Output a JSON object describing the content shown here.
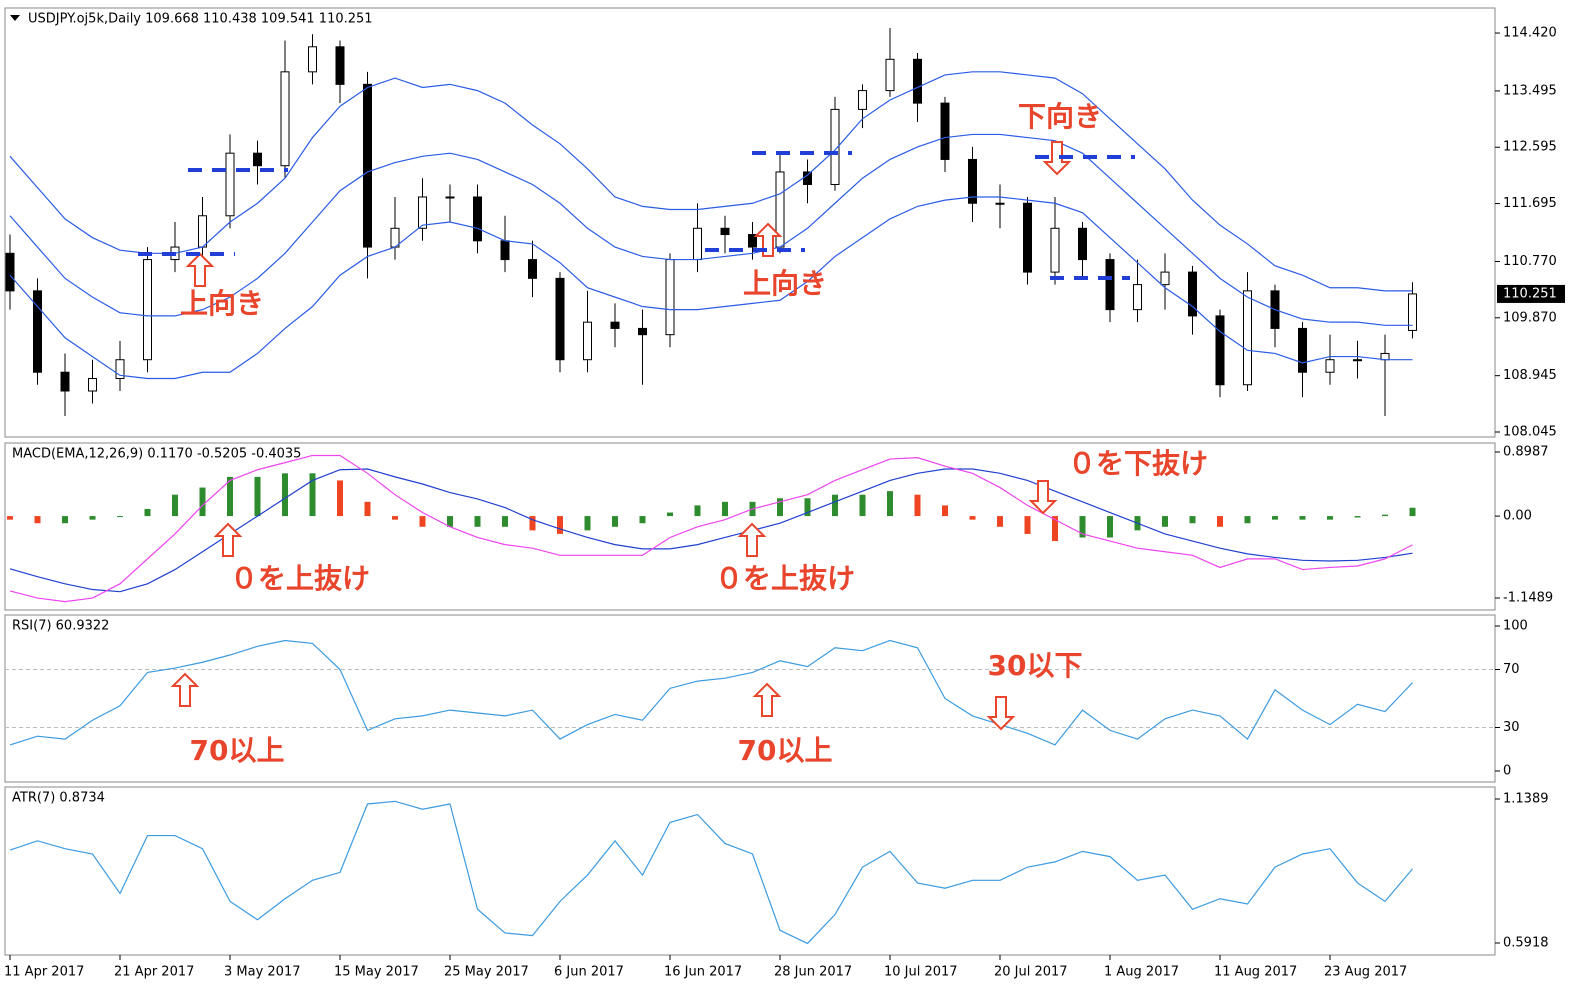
{
  "chart_data": [
    {
      "type": "candlestick",
      "title": "USDJPY.oj5k,Daily 109.668 110.438 109.541 110.251",
      "open": [
        110.9,
        110.3,
        109.0,
        108.7,
        108.9,
        109.2,
        110.8,
        111.0,
        111.5,
        112.5,
        112.3,
        113.8,
        114.2,
        113.6,
        111.0,
        111.3,
        111.8,
        111.8,
        111.1,
        110.8,
        110.5,
        109.2,
        109.8,
        109.7,
        109.6,
        110.8,
        111.3,
        111.2,
        111.0,
        112.2,
        112.0,
        113.2,
        113.5,
        114.0,
        113.3,
        112.4,
        111.7,
        111.7,
        110.6,
        111.3,
        110.8,
        110.0,
        110.4,
        110.6,
        109.9,
        108.8,
        110.3,
        109.7,
        109.0,
        109.2,
        109.2,
        109.668
      ],
      "high": [
        111.2,
        110.5,
        109.3,
        109.2,
        109.5,
        111.0,
        111.4,
        111.8,
        112.8,
        112.7,
        114.3,
        114.4,
        114.3,
        113.8,
        111.8,
        112.1,
        112.0,
        112.0,
        111.5,
        111.1,
        110.6,
        110.3,
        110.1,
        110.0,
        110.9,
        111.7,
        111.5,
        111.4,
        112.5,
        112.4,
        113.4,
        113.6,
        114.5,
        114.1,
        113.4,
        112.6,
        112.0,
        111.8,
        111.8,
        111.4,
        110.9,
        110.8,
        110.9,
        110.7,
        110.0,
        110.6,
        110.4,
        109.8,
        109.6,
        109.5,
        109.6,
        110.438
      ],
      "low": [
        110.0,
        108.8,
        108.3,
        108.5,
        108.7,
        109.0,
        110.6,
        110.8,
        111.3,
        112.0,
        112.1,
        113.6,
        113.3,
        110.5,
        110.8,
        111.1,
        111.4,
        110.9,
        110.6,
        110.2,
        109.0,
        109.0,
        109.4,
        108.8,
        109.4,
        110.6,
        110.9,
        110.8,
        110.9,
        111.7,
        111.9,
        112.9,
        113.4,
        113.0,
        112.2,
        111.4,
        111.3,
        110.4,
        110.4,
        110.5,
        109.8,
        109.8,
        110.0,
        109.6,
        108.6,
        108.7,
        109.4,
        108.6,
        108.8,
        108.9,
        108.3,
        109.541
      ],
      "close": [
        110.3,
        109.0,
        108.7,
        108.9,
        109.2,
        110.8,
        111.0,
        111.5,
        112.5,
        112.3,
        113.8,
        114.2,
        113.6,
        111.0,
        111.3,
        111.8,
        111.8,
        111.1,
        110.8,
        110.5,
        109.2,
        109.8,
        109.7,
        109.6,
        110.8,
        111.3,
        111.2,
        111.0,
        112.2,
        112.0,
        113.2,
        113.5,
        114.0,
        113.3,
        112.4,
        111.7,
        111.7,
        110.6,
        111.3,
        110.8,
        110.0,
        110.4,
        110.6,
        109.9,
        108.8,
        110.3,
        109.7,
        109.0,
        109.2,
        109.2,
        109.3,
        110.251
      ],
      "up_color": "#ffffff",
      "down_color": "#000000",
      "series": [
        {
          "color": "#2b5ce6",
          "values": [
            112.45,
            111.95,
            111.45,
            111.15,
            110.95,
            110.9,
            110.9,
            111.0,
            111.4,
            111.7,
            112.1,
            112.75,
            113.25,
            113.55,
            113.7,
            113.55,
            113.6,
            113.5,
            113.3,
            112.95,
            112.65,
            112.25,
            111.8,
            111.65,
            111.6,
            111.6,
            111.65,
            111.7,
            111.85,
            112.15,
            112.55,
            113.05,
            113.35,
            113.55,
            113.75,
            113.8,
            113.8,
            113.75,
            113.7,
            113.45,
            113.05,
            112.65,
            112.25,
            111.75,
            111.35,
            111.05,
            110.7,
            110.55,
            110.35,
            110.35,
            110.3,
            110.3
          ]
        },
        {
          "color": "#2b5ce6",
          "values": [
            111.5,
            111.0,
            110.5,
            110.2,
            109.95,
            109.9,
            109.9,
            110.0,
            110.2,
            110.5,
            110.9,
            111.4,
            111.9,
            112.2,
            112.35,
            112.45,
            112.5,
            112.4,
            112.2,
            112.0,
            111.7,
            111.3,
            111.0,
            110.85,
            110.8,
            110.8,
            110.85,
            110.9,
            111.0,
            111.3,
            111.7,
            112.1,
            112.4,
            112.6,
            112.75,
            112.8,
            112.8,
            112.75,
            112.7,
            112.5,
            112.1,
            111.7,
            111.3,
            110.9,
            110.5,
            110.2,
            110.0,
            109.85,
            109.8,
            109.8,
            109.75,
            109.75
          ]
        },
        {
          "color": "#2b5ce6",
          "values": [
            110.55,
            110.05,
            109.55,
            109.25,
            108.95,
            108.9,
            108.9,
            109.0,
            109.0,
            109.3,
            109.7,
            110.05,
            110.55,
            110.85,
            111.0,
            111.35,
            111.4,
            111.3,
            111.1,
            111.05,
            110.75,
            110.35,
            110.2,
            110.05,
            110.0,
            110.0,
            110.05,
            110.1,
            110.15,
            110.45,
            110.85,
            111.15,
            111.45,
            111.65,
            111.75,
            111.8,
            111.8,
            111.75,
            111.7,
            111.55,
            111.15,
            110.75,
            110.35,
            110.05,
            109.65,
            109.35,
            109.3,
            109.15,
            109.25,
            109.25,
            109.2,
            109.2
          ]
        }
      ],
      "ylim": [
        107.965,
        114.82
      ],
      "yticks": [
        {
          "value": 114.42,
          "label": "114.420"
        },
        113.495,
        112.595,
        111.695,
        {
          "value": 110.77,
          "label": "110.770"
        },
        {
          "value": 109.87,
          "label": "109.870"
        },
        108.945,
        108.045
      ],
      "annotations": [
        "上向き",
        "上向き",
        "下向き"
      ]
    },
    {
      "type": "macd",
      "title": "MACD(EMA,12,26,9) 0.1170 -0.5205 -0.4035",
      "values": [
        -0.05,
        -0.1,
        -0.1,
        -0.05,
        0.0,
        0.1,
        0.3,
        0.4,
        0.55,
        0.55,
        0.6,
        0.6,
        0.5,
        0.2,
        -0.05,
        -0.15,
        -0.15,
        -0.15,
        -0.15,
        -0.2,
        -0.25,
        -0.2,
        -0.15,
        -0.1,
        0.05,
        0.15,
        0.2,
        0.2,
        0.25,
        0.25,
        0.3,
        0.3,
        0.35,
        0.3,
        0.15,
        -0.05,
        -0.15,
        -0.25,
        -0.35,
        -0.3,
        -0.3,
        -0.2,
        -0.15,
        -0.1,
        -0.15,
        -0.1,
        -0.05,
        -0.05,
        -0.05,
        -0.02,
        0.02,
        0.117
      ],
      "up_color": "#2e8b2e",
      "down_color": "#ee4422",
      "series": [
        {
          "color": "#2040d0",
          "values": [
            -0.74,
            -0.85,
            -0.95,
            -1.03,
            -1.06,
            -0.95,
            -0.75,
            -0.5,
            -0.25,
            0.0,
            0.25,
            0.5,
            0.65,
            0.66,
            0.55,
            0.45,
            0.33,
            0.24,
            0.12,
            -0.05,
            -0.18,
            -0.3,
            -0.4,
            -0.46,
            -0.46,
            -0.4,
            -0.3,
            -0.2,
            -0.1,
            0.05,
            0.2,
            0.35,
            0.5,
            0.6,
            0.66,
            0.66,
            0.6,
            0.5,
            0.35,
            0.2,
            0.05,
            -0.1,
            -0.25,
            -0.35,
            -0.45,
            -0.53,
            -0.58,
            -0.62,
            -0.63,
            -0.62,
            -0.58,
            -0.5205
          ]
        },
        {
          "color": "#ee44ee",
          "values": [
            -1.05,
            -1.15,
            -1.2,
            -1.15,
            -0.95,
            -0.6,
            -0.25,
            0.15,
            0.5,
            0.65,
            0.75,
            0.85,
            0.85,
            0.6,
            0.3,
            0.05,
            -0.15,
            -0.3,
            -0.4,
            -0.45,
            -0.55,
            -0.55,
            -0.55,
            -0.55,
            -0.3,
            -0.15,
            -0.05,
            0.1,
            0.2,
            0.3,
            0.5,
            0.65,
            0.8,
            0.82,
            0.7,
            0.6,
            0.4,
            0.15,
            -0.05,
            -0.25,
            -0.35,
            -0.45,
            -0.5,
            -0.55,
            -0.72,
            -0.6,
            -0.6,
            -0.75,
            -0.72,
            -0.7,
            -0.6,
            -0.4035
          ]
        }
      ],
      "ylim": [
        -1.317,
        1.025
      ],
      "yticks": [
        0.8987,
        {
          "value": 0,
          "label": "0.00"
        },
        -1.1489
      ],
      "annotations": [
        "０を上抜け",
        "０を上抜け",
        "０を下抜け"
      ]
    },
    {
      "type": "line",
      "title": "RSI(7) 60.9322",
      "series": [
        {
          "color": "#3c9be0",
          "values": [
            18,
            24,
            22,
            35,
            45,
            68,
            71,
            75,
            80,
            86,
            90,
            88,
            70,
            28,
            36,
            38,
            42,
            40,
            38,
            42,
            22,
            32,
            39,
            35,
            57,
            62,
            64,
            68,
            76,
            72,
            85,
            83,
            90,
            85,
            50,
            38,
            32,
            26,
            18,
            42,
            28,
            22,
            36,
            42,
            38,
            22,
            56,
            42,
            32,
            46,
            41,
            60.9322
          ]
        }
      ],
      "ylim": [
        -7.6,
        107.6
      ],
      "yticks": [
        100,
        70,
        30,
        0
      ],
      "grid": true,
      "annotations": [
        "70以上",
        "70以上",
        "30以下"
      ]
    },
    {
      "type": "line",
      "title": "ATR(7) 0.8734",
      "series": [
        {
          "color": "#3c9be0",
          "values": [
            0.945,
            0.98,
            0.95,
            0.93,
            0.78,
            1.0,
            1.0,
            0.95,
            0.75,
            0.68,
            0.76,
            0.83,
            0.86,
            1.12,
            1.13,
            1.1,
            1.12,
            0.72,
            0.63,
            0.62,
            0.75,
            0.85,
            0.98,
            0.85,
            1.05,
            1.08,
            0.97,
            0.93,
            0.64,
            0.59,
            0.7,
            0.88,
            0.94,
            0.82,
            0.8,
            0.83,
            0.83,
            0.88,
            0.9,
            0.94,
            0.92,
            0.83,
            0.85,
            0.72,
            0.76,
            0.74,
            0.88,
            0.93,
            0.95,
            0.82,
            0.75,
            0.8734
          ]
        }
      ],
      "ylim": [
        0.5462,
        1.1845
      ],
      "yticks": [
        1.1389,
        0.5918
      ],
      "xticks": [
        {
          "value": 0,
          "label": "11 Apr 2017"
        },
        {
          "value": 4,
          "label": "21 Apr 2017"
        },
        {
          "value": 8,
          "label": "3 May 2017"
        },
        {
          "value": 12,
          "label": "15 May 2017"
        },
        {
          "value": 16,
          "label": "25 May 2017"
        },
        {
          "value": 20,
          "label": "6 Jun 2017"
        },
        {
          "value": 24,
          "label": "16 Jun 2017"
        },
        {
          "value": 28,
          "label": "28 Jun 2017"
        },
        {
          "value": 32,
          "label": "10 Jul 2017"
        },
        {
          "value": 36,
          "label": "20 Jul 2017"
        },
        {
          "value": 40,
          "label": "1 Aug 2017"
        },
        {
          "value": 44,
          "label": "11 Aug 2017"
        },
        {
          "value": 48,
          "label": "23 Aug 2017"
        }
      ]
    }
  ]
}
